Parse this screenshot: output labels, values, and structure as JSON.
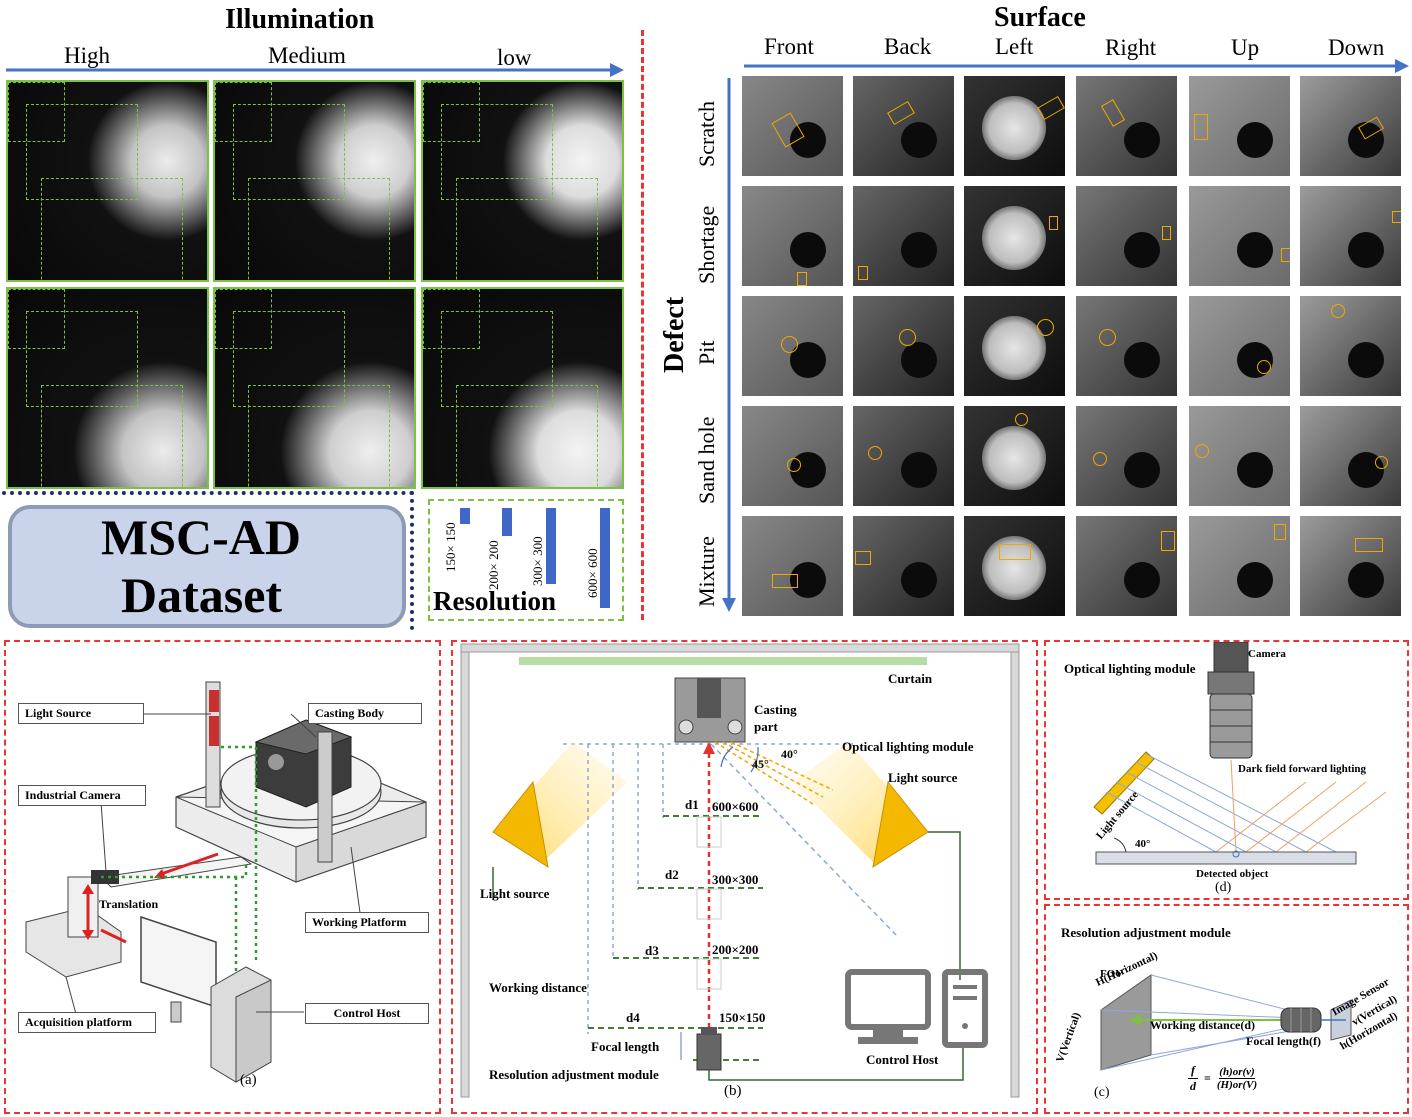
{
  "illumination": {
    "title": "Illumination",
    "levels": [
      "High",
      "Medium",
      "low"
    ]
  },
  "surface": {
    "title": "Surface",
    "columns": [
      "Front",
      "Back",
      "Left",
      "Right",
      "Up",
      "Down"
    ]
  },
  "defect": {
    "title": "Defect",
    "rows": [
      "Scratch",
      "Shortage",
      "Pit",
      "Sand hole",
      "Mixture"
    ]
  },
  "dataset": {
    "line1": "MSC-AD",
    "line2": "Dataset"
  },
  "resolution": {
    "title": "Resolution",
    "sizes": [
      "150× 150",
      "200× 200",
      "300× 300",
      "600× 600"
    ]
  },
  "panel_a": {
    "caption": "(a)",
    "labels": {
      "light_source": "Light Source",
      "casting_body": "Casting Body",
      "industrial_camera": "Industrial Camera",
      "translation": "Translation",
      "working_platform": "Working Platform",
      "acquisition_platform": "Acquisition platform",
      "control_host": "Control Host"
    }
  },
  "panel_b": {
    "caption": "(b)",
    "curtain": "Curtain",
    "casting_part": "Casting part",
    "optical_lighting_module": "Optical lighting module",
    "angle_40": "40°",
    "angle_45": "45°",
    "light_source_right": "Light source",
    "light_source_left": "Light source",
    "d1": "d1",
    "d2": "d2",
    "d3": "d3",
    "d4": "d4",
    "r600": "600×600",
    "r300": "300×300",
    "r200": "200×200",
    "r150": "150×150",
    "working_distance": "Working distance",
    "focal_length": "Focal length",
    "resolution_module": "Resolution adjustment module",
    "control_host": "Control Host"
  },
  "panel_d": {
    "caption": "(d)",
    "optical_lighting_module": "Optical lighting module",
    "camera": "Camera",
    "dark_field": "Dark field forward lighting",
    "light_source": "Light source",
    "angle": "40°",
    "detected_object": "Detected object"
  },
  "panel_c": {
    "caption": "(c)",
    "title": "Resolution adjustment module",
    "fov": "FOV",
    "h_horizontal": "H(Horizontal)",
    "v_vertical": "V(Vertical)",
    "working_distance": "Working distance(d)",
    "focal_length": "Focal length(f)",
    "image_sensor": "Image Sensor",
    "v_small": "v(Vertical)",
    "h_small": "h(Horizontal)",
    "formula_left": "f",
    "formula_left_den": "d",
    "formula_right": "(h)or(v)",
    "formula_right_den": "(H)or(V)"
  },
  "colors": {
    "arrow_blue": "#4472c4",
    "dash_green": "#7bc143",
    "dash_red": "#e53030",
    "dash_navy": "#1f2f6b",
    "box_orange": "#f0a800",
    "dataset_fill": "#c9d4ea"
  }
}
